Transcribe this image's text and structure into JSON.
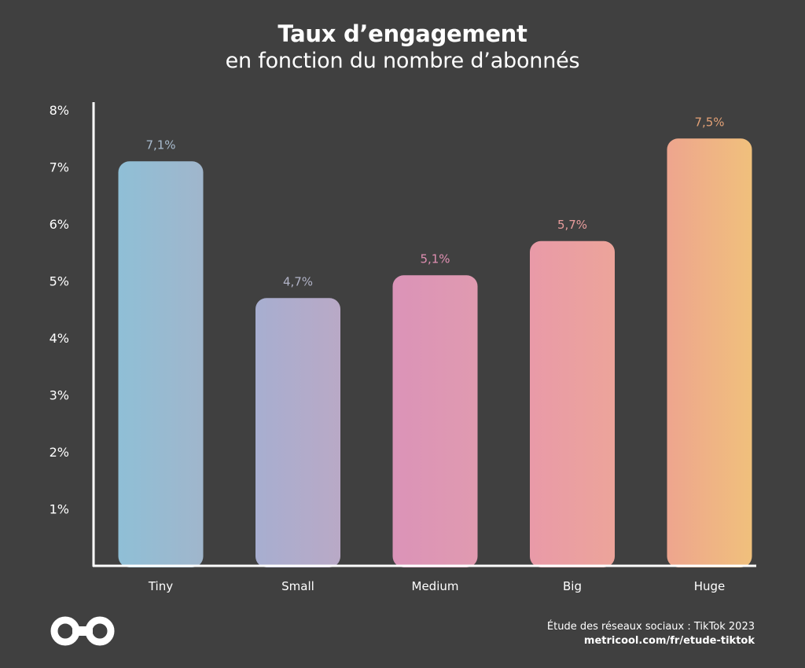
{
  "header": {
    "title": "Taux d’engagement",
    "subtitle": "en fonction du nombre d’abonnés"
  },
  "footer": {
    "source": "Étude des réseaux sociaux : TikTok 2023",
    "link": "metricool.com/fr/etude-tiktok",
    "logo_icon": "infinity-logo-icon"
  },
  "chart_data": {
    "type": "bar",
    "title": "Taux d’engagement",
    "subtitle": "en fonction du nombre d’abonnés",
    "xlabel": "",
    "ylabel": "",
    "categories": [
      "Tiny",
      "Small",
      "Medium",
      "Big",
      "Huge"
    ],
    "values": [
      7.1,
      4.7,
      5.1,
      5.7,
      7.5
    ],
    "value_labels": [
      "7,1%",
      "4,7%",
      "5,1%",
      "5,7%",
      "7,5%"
    ],
    "ylim": [
      0,
      8
    ],
    "y_ticks": [
      1,
      2,
      3,
      4,
      5,
      6,
      7,
      8
    ],
    "y_tick_labels": [
      "1%",
      "2%",
      "3%",
      "4%",
      "5%",
      "6%",
      "7%",
      "8%"
    ],
    "grid": false,
    "legend": "none",
    "bar_colors": [
      [
        "#8fbfd6",
        "#a0b6cc"
      ],
      [
        "#a7aed0",
        "#b9a9c6"
      ],
      [
        "#db93b8",
        "#e09ab0"
      ],
      [
        "#e99aa8",
        "#eca49a"
      ],
      [
        "#eea58e",
        "#f0c07c"
      ]
    ],
    "value_label_colors": [
      "#a9bccf",
      "#b0b2c6",
      "#e08fb2",
      "#e89c9c",
      "#e3a176"
    ],
    "axis_color": "#ffffff",
    "background": "#404040"
  }
}
